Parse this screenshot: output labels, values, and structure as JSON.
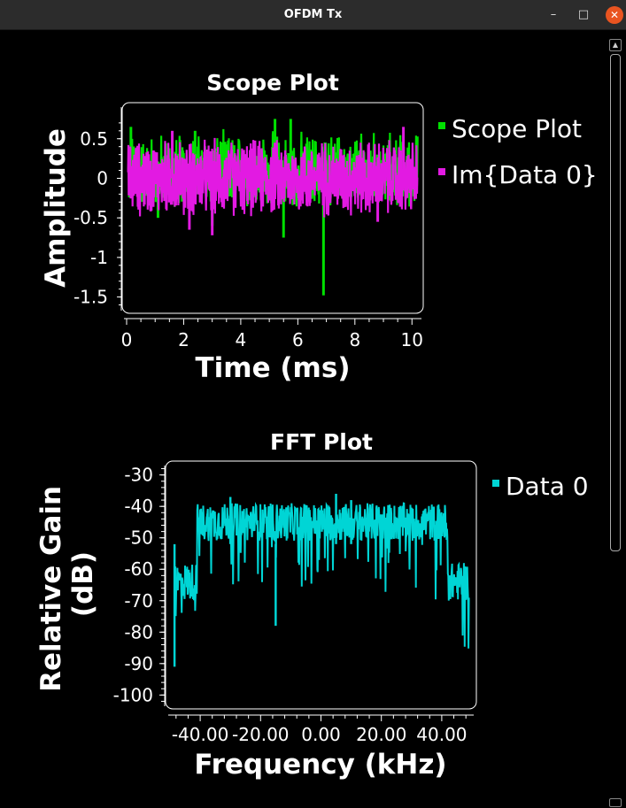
{
  "window": {
    "title": "OFDM Tx",
    "minimize": "–",
    "maximize": "□",
    "close": "✕"
  },
  "chart_data": [
    {
      "type": "line",
      "title": "Scope Plot",
      "xlabel": "Time (ms)",
      "ylabel": "Amplitude",
      "xlim": [
        0,
        10.24
      ],
      "ylim": [
        -1.65,
        0.9
      ],
      "xticks": [
        "0",
        "2",
        "4",
        "6",
        "8",
        "10"
      ],
      "xtick_values": [
        0,
        2,
        4,
        6,
        8,
        10
      ],
      "yticks": [
        "0.5",
        "0",
        "-0.5",
        "-1",
        "-1.5"
      ],
      "ytick_values": [
        0.5,
        0,
        -0.5,
        -1,
        -1.5
      ],
      "grid": false,
      "legend_position": "right",
      "series": [
        {
          "name": "Scope Plot",
          "color": "#00e000",
          "description_range": [
            -0.4,
            0.65
          ],
          "spikes": [
            [
              5.2,
              0.75
            ],
            [
              5.5,
              -0.75
            ],
            [
              5.75,
              0.75
            ],
            [
              6.9,
              -1.48
            ],
            [
              0.15,
              0.65
            ],
            [
              1.1,
              -0.5
            ],
            [
              2.4,
              0.6
            ],
            [
              3.0,
              -0.6
            ]
          ]
        },
        {
          "name": "Im{Data 0}",
          "color": "#e21ae2",
          "description_range": [
            -0.55,
            0.55
          ],
          "spikes": [
            [
              3.0,
              -0.72
            ],
            [
              1.6,
              0.6
            ],
            [
              9.7,
              0.65
            ],
            [
              2.2,
              -0.65
            ],
            [
              8.8,
              -0.55
            ]
          ]
        }
      ]
    },
    {
      "type": "line",
      "title": "FFT Plot",
      "xlabel": "Frequency (kHz)",
      "ylabel_lines": [
        "Relative Gain",
        "(dB)"
      ],
      "xlim": [
        -50,
        50
      ],
      "ylim": [
        -103,
        -27
      ],
      "xticks": [
        "-40.00",
        "-20.00",
        "0.00",
        "20.00",
        "40.00"
      ],
      "xtick_values": [
        -40,
        -20,
        0,
        20,
        40
      ],
      "yticks": [
        "-30",
        "-40",
        "-50",
        "-60",
        "-70",
        "-80",
        "-90",
        "-100"
      ],
      "ytick_values": [
        -30,
        -40,
        -50,
        -60,
        -70,
        -80,
        -90,
        -100
      ],
      "grid": false,
      "legend_position": "right",
      "series": [
        {
          "name": "Data 0",
          "color": "#00d5d5",
          "passband_khz": [
            -41,
            42
          ],
          "passband_level_db": [
            -40,
            -52
          ],
          "edge_level_db": [
            -58,
            -72
          ],
          "spikes": [
            [
              -48.5,
              -91
            ],
            [
              -15,
              -78
            ],
            [
              5,
              -36
            ],
            [
              10,
              -38
            ],
            [
              -30,
              -37
            ]
          ]
        }
      ]
    }
  ]
}
